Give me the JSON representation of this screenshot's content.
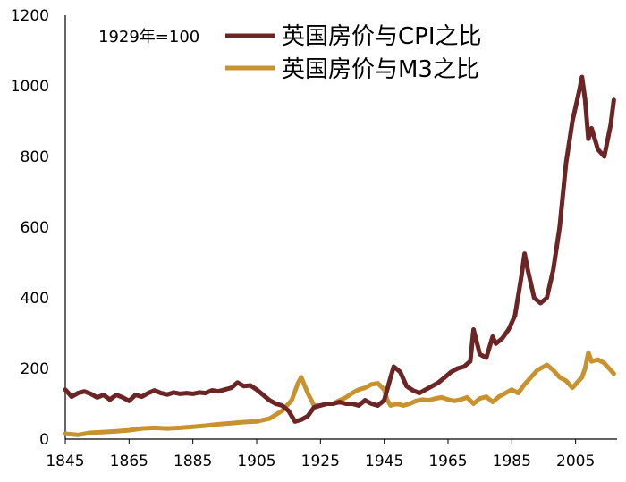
{
  "chart_data": {
    "type": "line",
    "annotation": "1929年=100",
    "xlim": [
      1845,
      2018
    ],
    "ylim": [
      0,
      1200
    ],
    "xticks": [
      1845,
      1865,
      1885,
      1905,
      1925,
      1945,
      1965,
      1985,
      2005
    ],
    "yticks": [
      0,
      200,
      400,
      600,
      800,
      1000,
      1200
    ],
    "grid": false,
    "legend_position": "top",
    "series": [
      {
        "name": "英国房价与CPI之比",
        "color": "#6B2525",
        "x": [
          1845,
          1847,
          1849,
          1851,
          1853,
          1855,
          1857,
          1859,
          1861,
          1863,
          1865,
          1867,
          1869,
          1871,
          1873,
          1875,
          1877,
          1879,
          1881,
          1883,
          1885,
          1887,
          1889,
          1891,
          1893,
          1895,
          1897,
          1899,
          1901,
          1903,
          1905,
          1907,
          1909,
          1911,
          1913,
          1915,
          1917,
          1919,
          1921,
          1923,
          1925,
          1927,
          1929,
          1931,
          1933,
          1935,
          1937,
          1939,
          1941,
          1943,
          1945,
          1947,
          1948,
          1950,
          1952,
          1954,
          1956,
          1958,
          1960,
          1962,
          1964,
          1966,
          1968,
          1970,
          1972,
          1973,
          1975,
          1977,
          1979,
          1980,
          1982,
          1984,
          1986,
          1988,
          1989,
          1990,
          1992,
          1994,
          1996,
          1998,
          2000,
          2002,
          2004,
          2006,
          2007,
          2008,
          2009,
          2010,
          2012,
          2014,
          2016,
          2017
        ],
        "y": [
          140,
          120,
          130,
          135,
          128,
          118,
          125,
          112,
          125,
          118,
          108,
          125,
          120,
          130,
          138,
          130,
          126,
          132,
          128,
          130,
          128,
          132,
          130,
          138,
          135,
          140,
          145,
          160,
          150,
          152,
          140,
          125,
          110,
          100,
          95,
          80,
          50,
          55,
          65,
          90,
          95,
          100,
          100,
          105,
          100,
          100,
          95,
          110,
          100,
          95,
          110,
          175,
          205,
          190,
          150,
          138,
          130,
          140,
          150,
          160,
          175,
          190,
          200,
          205,
          220,
          310,
          240,
          230,
          290,
          270,
          285,
          310,
          350,
          460,
          525,
          480,
          400,
          385,
          400,
          480,
          600,
          780,
          900,
          980,
          1025,
          960,
          850,
          880,
          820,
          800,
          890,
          960
        ]
      },
      {
        "name": "英国房价与M3之比",
        "color": "#C8922E",
        "x": [
          1845,
          1849,
          1853,
          1857,
          1861,
          1865,
          1869,
          1873,
          1877,
          1881,
          1885,
          1889,
          1893,
          1897,
          1901,
          1905,
          1909,
          1913,
          1916,
          1918,
          1919,
          1921,
          1923,
          1925,
          1927,
          1929,
          1931,
          1933,
          1935,
          1937,
          1939,
          1941,
          1943,
          1945,
          1946,
          1947,
          1949,
          1951,
          1953,
          1955,
          1957,
          1959,
          1961,
          1963,
          1965,
          1967,
          1969,
          1971,
          1973,
          1975,
          1977,
          1979,
          1981,
          1983,
          1985,
          1987,
          1989,
          1991,
          1993,
          1995,
          1996,
          1998,
          2000,
          2002,
          2004,
          2006,
          2007,
          2008,
          2009,
          2010,
          2012,
          2014,
          2016,
          2017
        ],
        "y": [
          15,
          12,
          18,
          20,
          22,
          25,
          30,
          32,
          30,
          32,
          35,
          38,
          42,
          45,
          48,
          50,
          58,
          80,
          110,
          160,
          175,
          130,
          95,
          95,
          100,
          100,
          110,
          118,
          130,
          140,
          145,
          155,
          158,
          140,
          110,
          95,
          100,
          95,
          100,
          108,
          112,
          110,
          115,
          118,
          112,
          108,
          112,
          118,
          100,
          115,
          120,
          105,
          120,
          130,
          140,
          130,
          155,
          175,
          195,
          205,
          210,
          195,
          175,
          165,
          145,
          165,
          175,
          200,
          245,
          220,
          225,
          215,
          195,
          185
        ]
      }
    ]
  }
}
